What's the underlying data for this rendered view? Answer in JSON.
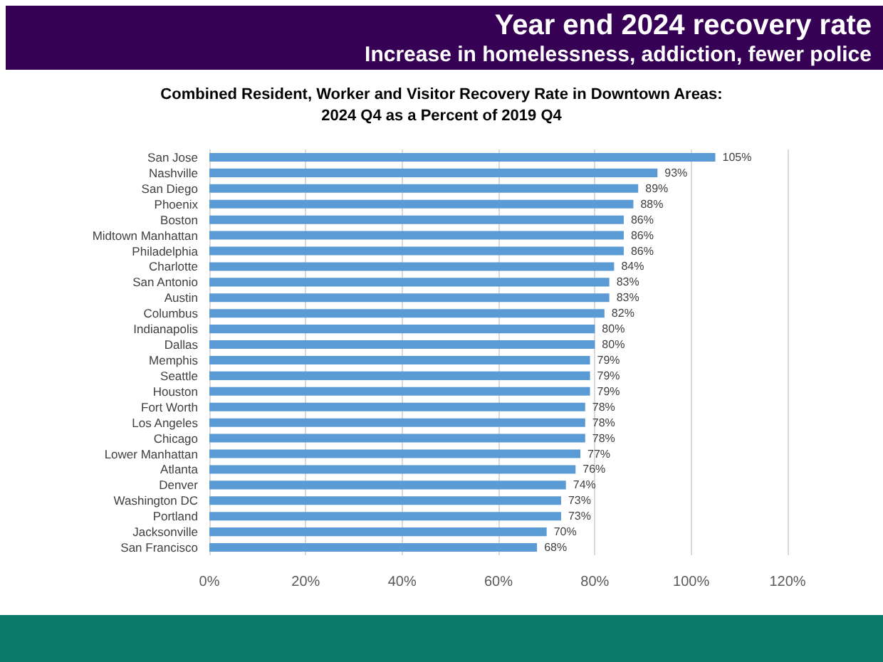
{
  "chart_data": {
    "type": "bar",
    "orientation": "horizontal",
    "title": "Year end 2024 recovery rate",
    "subtitle": "Increase in homelessness, addiction, fewer police",
    "annotations": [
      "Combined Resident, Worker and Visitor Recovery Rate in Downtown Areas:\n2024 Q4 as a Percent of 2019 Q4"
    ],
    "categories": [
      "San Jose",
      "Nashville",
      "San Diego",
      "Phoenix",
      "Boston",
      "Midtown Manhattan",
      "Philadelphia",
      "Charlotte",
      "San Antonio",
      "Austin",
      "Columbus",
      "Indianapolis",
      "Dallas",
      "Memphis",
      "Seattle",
      "Houston",
      "Fort Worth",
      "Los Angeles",
      "Chicago",
      "Lower Manhattan",
      "Atlanta",
      "Denver",
      "Washington DC",
      "Portland",
      "Jacksonville",
      "San Francisco"
    ],
    "values": [
      105,
      93,
      89,
      88,
      86,
      86,
      86,
      84,
      83,
      83,
      82,
      80,
      80,
      79,
      79,
      79,
      78,
      78,
      78,
      77,
      76,
      74,
      73,
      73,
      70,
      68
    ],
    "value_labels": [
      "105%",
      "93%",
      "89%",
      "88%",
      "86%",
      "86%",
      "86%",
      "84%",
      "83%",
      "83%",
      "82%",
      "80%",
      "80%",
      "79%",
      "79%",
      "79%",
      "78%",
      "78%",
      "78%",
      "77%",
      "76%",
      "74%",
      "73%",
      "73%",
      "70%",
      "68%"
    ],
    "color": "#5b9bd5",
    "xlim": [
      0,
      120
    ],
    "xticks": [
      {
        "value": 0,
        "label": "0%"
      },
      {
        "value": 20,
        "label": "20%"
      },
      {
        "value": 40,
        "label": "40%"
      },
      {
        "value": 60,
        "label": "60%"
      },
      {
        "value": 80,
        "label": "80%"
      },
      {
        "value": 100,
        "label": "100%"
      },
      {
        "value": 120,
        "label": "120%"
      }
    ],
    "grid": "x"
  }
}
